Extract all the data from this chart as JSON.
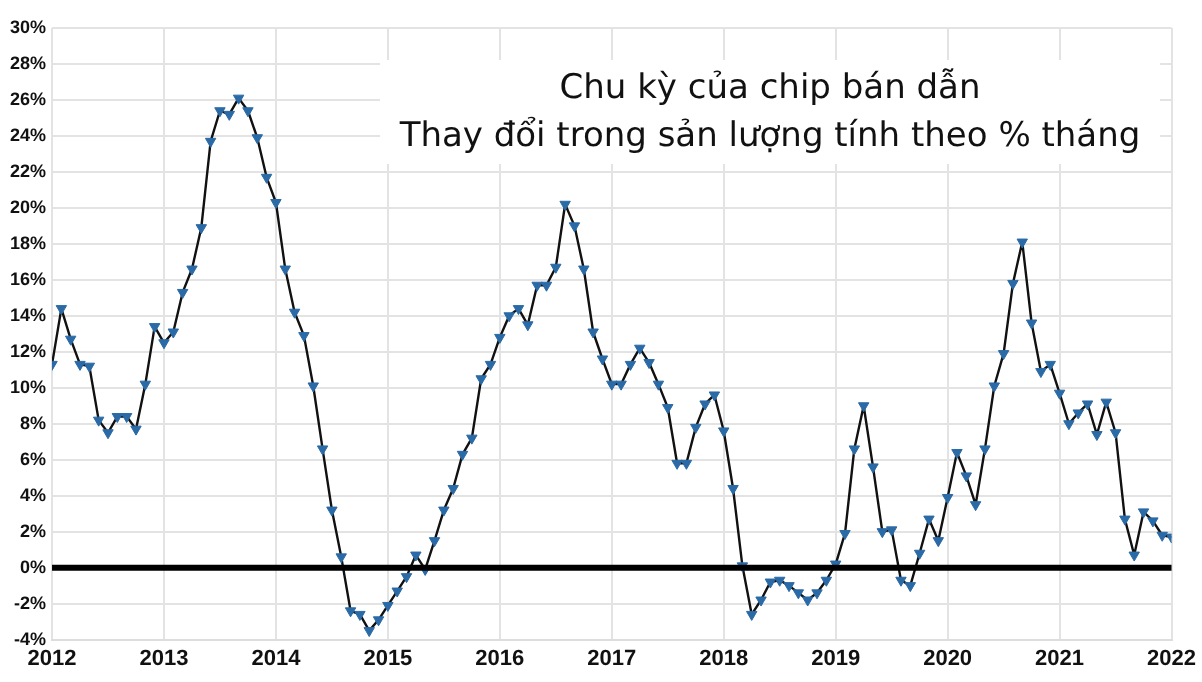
{
  "chart_data": {
    "type": "line",
    "title": "Chu kỳ của chip bán dẫn",
    "subtitle": "Thay đổi trong sản lượng tính theo % tháng",
    "x": [
      "2012-01",
      "2012-02",
      "2012-03",
      "2012-04",
      "2012-05",
      "2012-06",
      "2012-07",
      "2012-08",
      "2012-09",
      "2012-10",
      "2012-11",
      "2012-12",
      "2013-01",
      "2013-02",
      "2013-03",
      "2013-04",
      "2013-05",
      "2013-06",
      "2013-07",
      "2013-08",
      "2013-09",
      "2013-10",
      "2013-11",
      "2013-12",
      "2014-01",
      "2014-02",
      "2014-03",
      "2014-04",
      "2014-05",
      "2014-06",
      "2014-07",
      "2014-08",
      "2014-09",
      "2014-10",
      "2014-11",
      "2014-12",
      "2015-01",
      "2015-02",
      "2015-03",
      "2015-04",
      "2015-05",
      "2015-06",
      "2015-07",
      "2015-08",
      "2015-09",
      "2015-10",
      "2015-11",
      "2015-12",
      "2016-01",
      "2016-02",
      "2016-03",
      "2016-04",
      "2016-05",
      "2016-06",
      "2016-07",
      "2016-08",
      "2016-09",
      "2016-10",
      "2016-11",
      "2016-12",
      "2017-01",
      "2017-02",
      "2017-03",
      "2017-04",
      "2017-05",
      "2017-06",
      "2017-07",
      "2017-08",
      "2017-09",
      "2017-10",
      "2017-11",
      "2017-12",
      "2018-01",
      "2018-02",
      "2018-03",
      "2018-04",
      "2018-05",
      "2018-06",
      "2018-07",
      "2018-08",
      "2018-09",
      "2018-10",
      "2018-11",
      "2018-12",
      "2019-01",
      "2019-02",
      "2019-03",
      "2019-04",
      "2019-05",
      "2019-06",
      "2019-07",
      "2019-08",
      "2019-09",
      "2019-10",
      "2019-11",
      "2019-12",
      "2020-01",
      "2020-02",
      "2020-03",
      "2020-04",
      "2020-05",
      "2020-06",
      "2020-07",
      "2020-08",
      "2020-09",
      "2020-10",
      "2020-11",
      "2020-12",
      "2021-01",
      "2021-02",
      "2021-03",
      "2021-04",
      "2021-05",
      "2021-06",
      "2021-07",
      "2021-08",
      "2021-09",
      "2021-10",
      "2021-11",
      "2021-12",
      "2022-01"
    ],
    "series": [
      {
        "color": "#2a6aa6",
        "values": [
          11.3,
          14.4,
          12.7,
          11.3,
          11.2,
          8.2,
          7.5,
          8.4,
          8.4,
          7.7,
          10.2,
          13.4,
          12.5,
          13.1,
          15.3,
          16.6,
          18.9,
          23.7,
          25.4,
          25.2,
          26.1,
          25.4,
          23.9,
          21.7,
          20.3,
          16.6,
          14.2,
          12.9,
          10.1,
          6.6,
          3.2,
          0.6,
          -2.4,
          -2.6,
          -3.5,
          -2.9,
          -2.1,
          -1.3,
          -0.5,
          0.7,
          -0.1,
          1.5,
          3.2,
          4.4,
          6.3,
          7.2,
          10.5,
          11.3,
          12.8,
          14.0,
          14.4,
          13.5,
          15.7,
          15.7,
          16.7,
          20.2,
          19.0,
          16.6,
          13.1,
          11.6,
          10.2,
          10.2,
          11.3,
          12.2,
          11.4,
          10.2,
          8.9,
          5.8,
          5.8,
          7.8,
          9.1,
          9.6,
          7.6,
          4.4,
          0.1,
          -2.6,
          -1.8,
          -0.8,
          -0.7,
          -1.0,
          -1.4,
          -1.8,
          -1.4,
          -0.7,
          0.2,
          1.9,
          6.6,
          9.0,
          5.6,
          2.0,
          2.1,
          -0.7,
          -1.0,
          0.8,
          2.7,
          1.5,
          3.9,
          6.4,
          5.1,
          3.5,
          6.6,
          10.1,
          11.9,
          15.8,
          18.1,
          13.6,
          10.9,
          11.3,
          9.7,
          8.0,
          8.6,
          9.1,
          7.4,
          9.2,
          7.5,
          2.7,
          0.7,
          3.1,
          2.6,
          1.8,
          1.7
        ]
      }
    ],
    "xlim": [
      "2012",
      "2022"
    ],
    "xticks": [
      "2012",
      "2013",
      "2014",
      "2015",
      "2016",
      "2017",
      "2018",
      "2019",
      "2020",
      "2021",
      "2022"
    ],
    "ylim": [
      -4,
      30
    ],
    "yticks": [
      {
        "value": -4,
        "label": "-4%"
      },
      {
        "value": -2,
        "label": "-2%"
      },
      {
        "value": 0,
        "label": "0%"
      },
      {
        "value": 2,
        "label": "2%"
      },
      {
        "value": 4,
        "label": "4%"
      },
      {
        "value": 6,
        "label": "6%"
      },
      {
        "value": 8,
        "label": "8%"
      },
      {
        "value": 10,
        "label": "10%"
      },
      {
        "value": 12,
        "label": "12%"
      },
      {
        "value": 14,
        "label": "14%"
      },
      {
        "value": 16,
        "label": "16%"
      },
      {
        "value": 18,
        "label": "18%"
      },
      {
        "value": 20,
        "label": "20%"
      },
      {
        "value": 22,
        "label": "22%"
      },
      {
        "value": 24,
        "label": "24%"
      },
      {
        "value": 26,
        "label": "26%"
      },
      {
        "value": 28,
        "label": "28%"
      },
      {
        "value": 30,
        "label": "30%"
      }
    ],
    "ref_lines": [
      {
        "axis": "y",
        "value": 0,
        "color": "#000000"
      }
    ],
    "grid": true,
    "marker": "triangle",
    "line_style": "solid",
    "legend": false
  }
}
